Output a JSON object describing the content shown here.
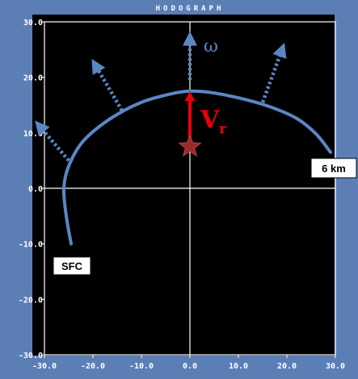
{
  "chart_data": {
    "type": "line",
    "title": "HODOGRAPH",
    "xlim": [
      -30,
      30
    ],
    "ylim": [
      -30,
      30
    ],
    "x_ticks": [
      -30,
      -20,
      -10,
      0,
      10,
      20,
      30
    ],
    "y_ticks": [
      30,
      20,
      10,
      0,
      -10,
      -20,
      -30
    ],
    "x_tick_labels": [
      "-30.0",
      "-20.0",
      "-10.0",
      "0.0",
      "10.0",
      "20.0",
      "30.0"
    ],
    "y_tick_labels": [
      "30.0",
      "20.0",
      "10.0",
      "0.0",
      "-10.0",
      "-20.0",
      "-30.0"
    ],
    "series": [
      {
        "x": [
          -24.5,
          -25.5,
          -26.0,
          -25.0,
          -22.0,
          -16.5,
          -10.0,
          -4.0,
          0.0,
          4.0,
          10.0,
          16.5,
          22.0,
          26.0,
          29.0
        ],
        "y": [
          -10.0,
          -5.0,
          0.0,
          4.0,
          8.5,
          12.5,
          15.5,
          17.0,
          17.5,
          17.3,
          16.3,
          14.7,
          12.6,
          9.8,
          6.5
        ]
      }
    ],
    "labels": {
      "surface": "SFC",
      "top": "6 km"
    },
    "storm_motion": {
      "x": 0.0,
      "y": 7.5
    },
    "vr": {
      "text": "V",
      "subscript": "r",
      "from": [
        0,
        7.5
      ],
      "to": [
        0,
        17.5
      ]
    },
    "omega": {
      "text": "ω"
    },
    "vorticity_arrows": [
      {
        "from": [
          -25.0,
          5.0
        ],
        "to": [
          -31.0,
          11.2
        ]
      },
      {
        "from": [
          -14.0,
          14.0
        ],
        "to": [
          -19.5,
          22.2
        ]
      },
      {
        "from": [
          0.0,
          19.5
        ],
        "to": [
          0.0,
          27.0
        ]
      },
      {
        "from": [
          15.0,
          15.5
        ],
        "to": [
          19.0,
          25.0
        ]
      }
    ],
    "colors": {
      "background": "#000000",
      "frame": "#5b7fb5",
      "hodograph": "#5b86c4",
      "vorticity": "#5b86c4",
      "vr": "#e8000d",
      "star": "#9b2a2a",
      "grid": "#ffffff",
      "omega": "#5b86c4"
    }
  }
}
